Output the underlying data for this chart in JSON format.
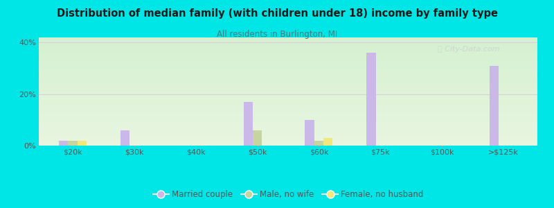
{
  "title": "Distribution of median family (with children under 18) income by family type",
  "subtitle": "All residents in Burlington, MI",
  "categories": [
    "$20k",
    "$30k",
    "$40k",
    "$50k",
    "$60k",
    "$75k",
    "$100k",
    ">$125k"
  ],
  "married_couple": [
    2.0,
    6.0,
    0.0,
    17.0,
    10.0,
    36.0,
    0.0,
    31.0
  ],
  "male_no_wife": [
    2.0,
    0.0,
    0.0,
    6.0,
    2.0,
    0.0,
    0.0,
    0.0
  ],
  "female_no_husb": [
    2.0,
    0.0,
    0.0,
    0.0,
    3.0,
    0.0,
    0.0,
    0.0
  ],
  "bar_colors": {
    "married_couple": "#c9b8e8",
    "male_no_wife": "#c8d4a0",
    "female_no_husb": "#f0e87a"
  },
  "bar_width": 0.15,
  "ylim": [
    0,
    42
  ],
  "yticks": [
    0,
    20,
    40
  ],
  "ytick_labels": [
    "0%",
    "20%",
    "40%"
  ],
  "background_color": "#00e5e5",
  "plot_bg_top": "#d8edd8",
  "plot_bg_bottom": "#e8f5e8",
  "grid_color": "#ddccdd",
  "title_color": "#1a1a1a",
  "subtitle_color": "#4a7a7a",
  "axis_label_color": "#555555",
  "legend_labels": [
    "Married couple",
    "Male, no wife",
    "Female, no husband"
  ],
  "watermark": "Ⓢ City-Data.com"
}
